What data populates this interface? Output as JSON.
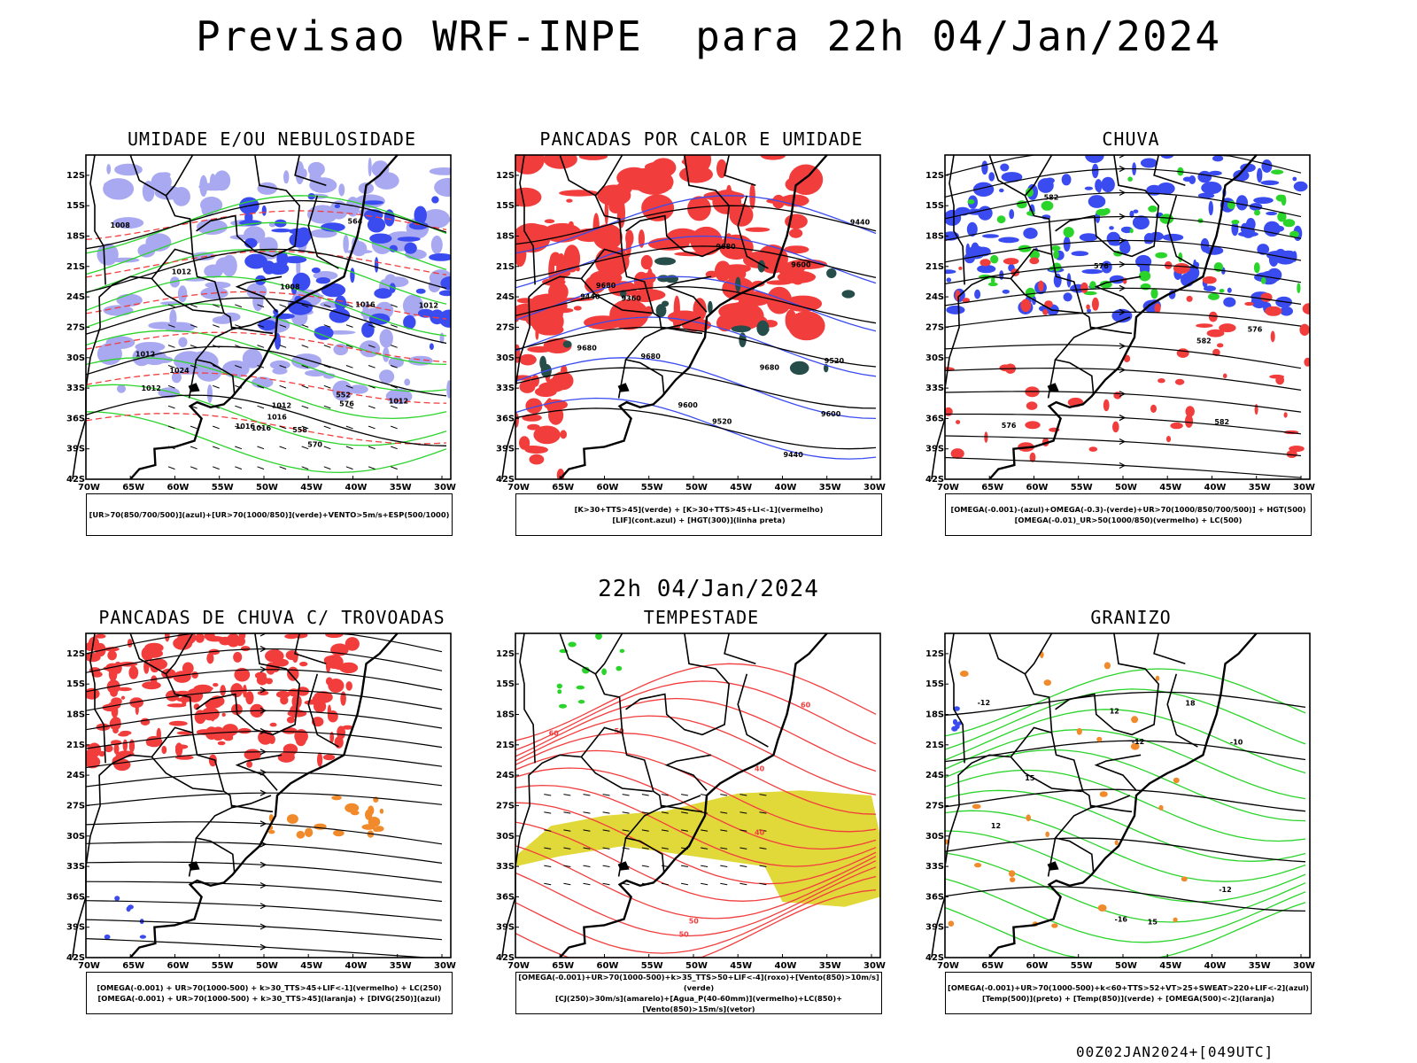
{
  "header": {
    "title": "Previsao WRF-INPE  para 22h 04/Jan/2024"
  },
  "middle": {
    "subtitle": "22h 04/Jan/2024"
  },
  "footer": {
    "stamp": "00Z02JAN2024+[049UTC]"
  },
  "axes": {
    "lat_labels": [
      "12S",
      "15S",
      "18S",
      "21S",
      "24S",
      "27S",
      "30S",
      "33S",
      "36S",
      "39S",
      "42S"
    ],
    "lon_labels": [
      "70W",
      "65W",
      "60W",
      "55W",
      "50W",
      "45W",
      "40W",
      "35W",
      "30W"
    ]
  },
  "colors": {
    "red": "#f23d3d",
    "green": "#2bd42b",
    "blue": "#3a4cf0",
    "lavender": "#a9a9f2",
    "dark_teal": "#264d49",
    "yellow": "#e1d83a",
    "orange": "#f08a2a",
    "black": "#000000"
  },
  "panels": [
    {
      "id": "umidade",
      "title": "UMIDADE E/OU NEBULOSIDADE",
      "legend": [
        "[UR>70(850/700/500)](azul)+[UR>70(1000/850)](verde)+VENTO>5m/s+ESP(500/1000)"
      ],
      "contour_labels": [
        "1016",
        "1012",
        "1008",
        "1008",
        "1012",
        "1012",
        "1016",
        "1012",
        "1016",
        "1012",
        "1024",
        "1012",
        "1016",
        "570",
        "564",
        "558",
        "552",
        "576"
      ]
    },
    {
      "id": "pancadas-calor",
      "title": "PANCADAS POR CALOR E UMIDADE",
      "legend": [
        "[K>30+TTS>45](verde) + [K>30+TTS>45+LI<-1](vermelho)",
        "[LIF](cont.azul) + [HGT(300)](linha preta)"
      ],
      "contour_labels": [
        "9680",
        "9680",
        "9680",
        "9680",
        "9680",
        "9600",
        "9600",
        "9600",
        "9520",
        "9520",
        "9440",
        "9440",
        "9440",
        "9360"
      ]
    },
    {
      "id": "chuva",
      "title": "CHUVA",
      "legend": [
        "[OMEGA(-0.001)-(azul)+OMEGA(-0.3)-(verde)+UR>70(1000/850/700/500)] + HGT(500)",
        "[OMEGA(-0.01)_UR>50(1000/850)(vermelho) + LC(500)"
      ],
      "contour_labels": [
        "582",
        "576",
        "576",
        "582",
        "576",
        "582"
      ]
    },
    {
      "id": "pancadas-trovoadas",
      "title": "PANCADAS DE CHUVA C/ TROVOADAS",
      "legend": [
        "[OMEGA(-0.001) + UR>70(1000-500) + k>30_TTS>45+LIF<-1](vermelho) + LC(250)",
        "[OMEGA(-0.001) + UR>70(1000-500) + k>30_TTS>45](laranja) + [DIVG(250)](azul)"
      ],
      "contour_labels": []
    },
    {
      "id": "tempestade",
      "title": "TEMPESTADE",
      "legend": [
        "[OMEGA(-0.001)+UR>70(1000-500)+k>35_TTS>50+LIF<-4](roxo)+[Vento(850)>10m/s](verde)",
        "[CJ(250)>30m/s](amarelo)+[Agua_P(40-60mm)](vermelho)+LC(850)+[Vento(850)>15m/s](vetor)"
      ],
      "contour_labels": [
        "60",
        "50",
        "40",
        "50",
        "60",
        "50",
        "40"
      ]
    },
    {
      "id": "granizo",
      "title": "GRANIZO",
      "legend": [
        "[OMEGA(-0.001)+UR>70(1000-500)+k<60+TTS>52+VT>25+SWEAT>220+LIF<-2](azul)",
        "[Temp(500)](preto) + [Temp(850)](verde) + [OMEGA(500)<-2](laranja)"
      ],
      "contour_labels": [
        "-12",
        "-12",
        "-12",
        "-10",
        "-16",
        "12",
        "15",
        "18",
        "15",
        "12"
      ]
    }
  ]
}
